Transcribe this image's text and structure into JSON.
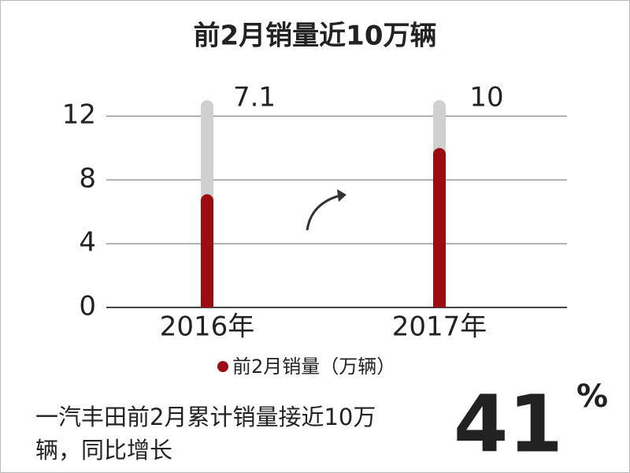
{
  "chart_data": {
    "type": "bar",
    "title": "前2月销量近10万辆",
    "categories": [
      "2016年",
      "2017年"
    ],
    "series": [
      {
        "name": "前2月销量（万辆）",
        "color": "#9b0d10",
        "values": [
          7.1,
          10
        ]
      }
    ],
    "track_color": "#d0d0d0",
    "ylim": [
      0,
      13
    ],
    "yticks": [
      0,
      4,
      8,
      12
    ],
    "grid": true,
    "legend": "bottom",
    "note": "一汽丰田前2月累计销量接近10万辆，同比增长",
    "growth": "41",
    "growth_unit": "%"
  }
}
